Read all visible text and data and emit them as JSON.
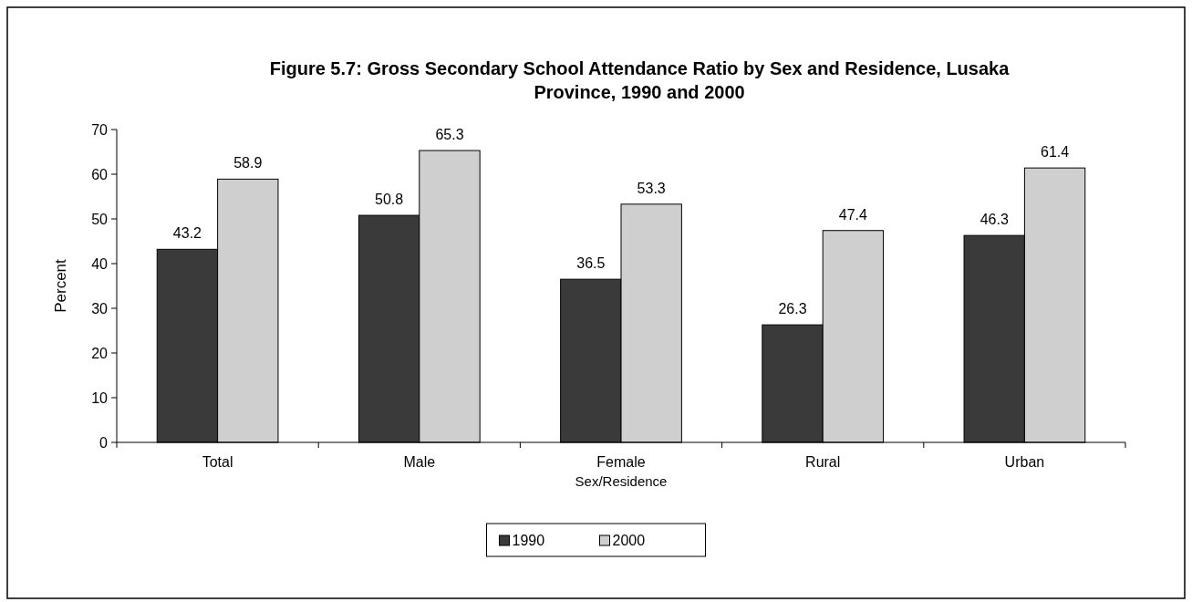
{
  "chart_data": {
    "type": "bar",
    "title": "Figure   5.7: Gross Secondary School Attendance Ratio by Sex and Residence, Lusaka\nProvince, 1990 and 2000",
    "xlabel": "Sex/Residence",
    "ylabel": "Percent",
    "categories": [
      "Total",
      "Male",
      "Female",
      "Rural",
      "Urban"
    ],
    "series": [
      {
        "name": "1990",
        "color": "#3a3a3a",
        "values": [
          43.2,
          50.8,
          36.5,
          26.3,
          46.3
        ]
      },
      {
        "name": "2000",
        "color": "#cfcfcf",
        "values": [
          58.9,
          65.3,
          53.3,
          47.4,
          61.4
        ]
      }
    ],
    "ylim": [
      0,
      70
    ],
    "yticks": [
      0,
      10,
      20,
      30,
      40,
      50,
      60,
      70
    ],
    "data_labels": true,
    "legend": "bottom",
    "grid": false
  }
}
